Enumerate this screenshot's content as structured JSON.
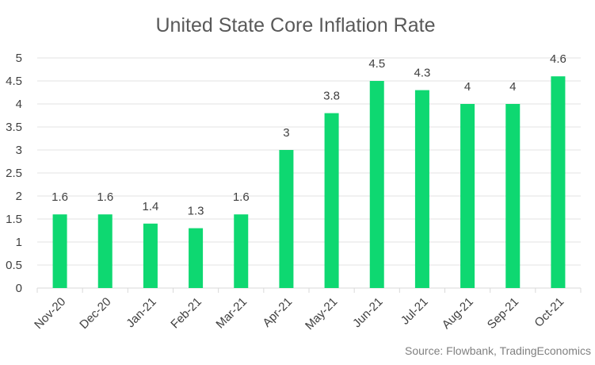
{
  "chart_data": {
    "type": "bar",
    "title": "United State Core Inflation Rate",
    "categories": [
      "Nov-20",
      "Dec-20",
      "Jan-21",
      "Feb-21",
      "Mar-21",
      "Apr-21",
      "May-21",
      "Jun-21",
      "Jul-21",
      "Aug-21",
      "Sep-21",
      "Oct-21"
    ],
    "values": [
      1.6,
      1.6,
      1.4,
      1.3,
      1.6,
      3,
      3.8,
      4.5,
      4.3,
      4,
      4,
      4.6
    ],
    "data_labels": [
      "1.6",
      "1.6",
      "1.4",
      "1.3",
      "1.6",
      "3",
      "3.8",
      "4.5",
      "4.3",
      "4",
      "4",
      "4.6"
    ],
    "y_ticks": [
      "0",
      "0.5",
      "1",
      "1.5",
      "2",
      "2.5",
      "3",
      "3.5",
      "4",
      "4.5",
      "5"
    ],
    "ylim": [
      0,
      5
    ],
    "xlabel": "",
    "ylabel": "",
    "grid": true,
    "legend": "none",
    "bar_color": "#0ed871",
    "source": "Source: Flowbank, TradingEconomics"
  }
}
